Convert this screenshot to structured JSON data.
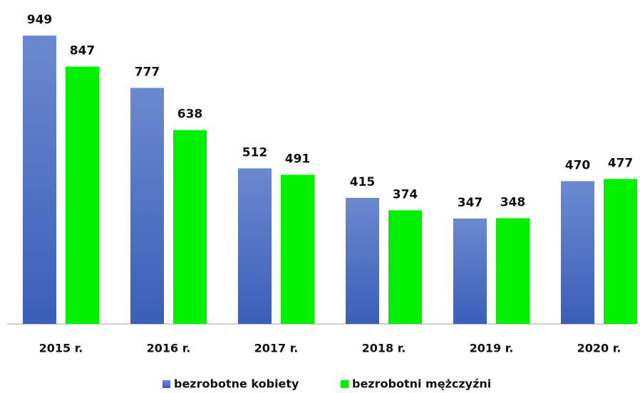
{
  "chart_data": {
    "type": "bar",
    "categories": [
      "2015 r.",
      "2016 r.",
      "2017 r.",
      "2018 r.",
      "2019 r.",
      "2020 r."
    ],
    "series": [
      {
        "name": "bezrobotne kobiety",
        "color": "#4a6fc0",
        "values": [
          949,
          777,
          512,
          415,
          347,
          470
        ]
      },
      {
        "name": "bezrobotni mężczyźni",
        "color": "#00f000",
        "values": [
          847,
          638,
          491,
          374,
          348,
          477
        ]
      }
    ],
    "legend": "bottom"
  }
}
